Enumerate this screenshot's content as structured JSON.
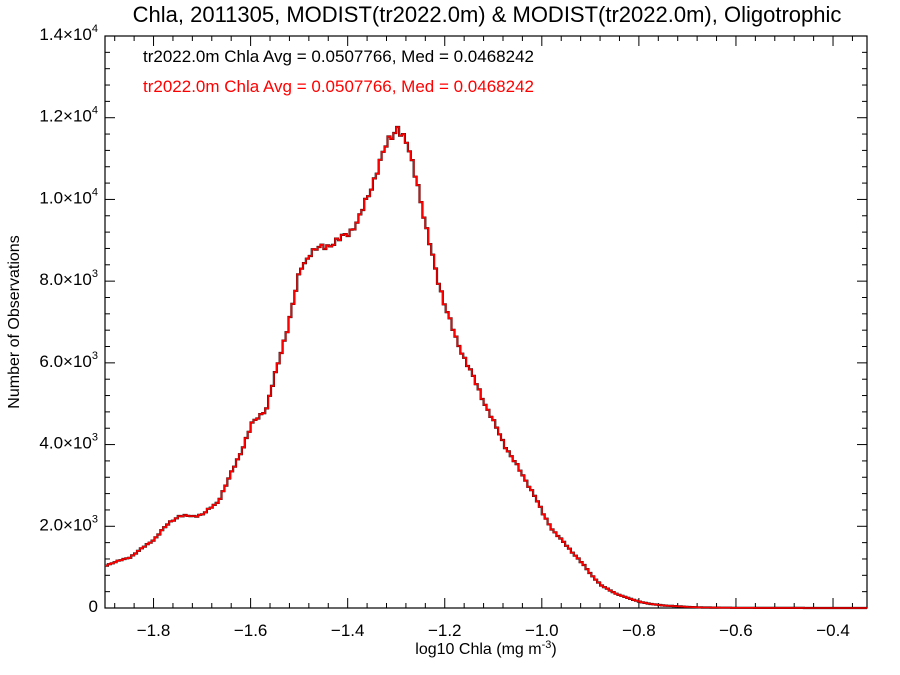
{
  "chart_data": {
    "type": "line",
    "title": "Chla, 2011305, MODIST(tr2022.0m) & MODIST(tr2022.0m), Oligotrophic",
    "xlabel": "log10 Chla (mg m",
    "xlabel_sup": "-3",
    "xlabel_end": ")",
    "ylabel": "Number of Observations",
    "xlim": [
      -1.9,
      -0.33
    ],
    "ylim": [
      0,
      14000
    ],
    "grid": false,
    "x_ticks": [
      -1.8,
      -1.6,
      -1.4,
      -1.2,
      -1.0,
      -0.8,
      -0.6,
      -0.4
    ],
    "x_tick_labels": [
      "−1.8",
      "−1.6",
      "−1.4",
      "−1.2",
      "−1.0",
      "−0.8",
      "−0.6",
      "−0.4"
    ],
    "y_ticks": [
      0,
      2000,
      4000,
      6000,
      8000,
      10000,
      12000,
      14000
    ],
    "y_tick_labels": [
      {
        "base": "0",
        "exp": ""
      },
      {
        "base": "2.0×10",
        "exp": "3"
      },
      {
        "base": "4.0×10",
        "exp": "3"
      },
      {
        "base": "6.0×10",
        "exp": "3"
      },
      {
        "base": "8.0×10",
        "exp": "3"
      },
      {
        "base": "1.0×10",
        "exp": "4"
      },
      {
        "base": "1.2×10",
        "exp": "4"
      },
      {
        "base": "1.4×10",
        "exp": "4"
      }
    ],
    "annotations": [
      {
        "text": "tr2022.0m Chla Avg = 0.0507766, Med = 0.0468242",
        "color": "#000000"
      },
      {
        "text": "tr2022.0m Chla Avg = 0.0507766, Med = 0.0468242",
        "color": "#ff0000"
      }
    ],
    "series": [
      {
        "color": "#000000",
        "x": [
          -1.9,
          -1.85,
          -1.8,
          -1.77,
          -1.75,
          -1.72,
          -1.7,
          -1.67,
          -1.65,
          -1.62,
          -1.6,
          -1.57,
          -1.55,
          -1.52,
          -1.5,
          -1.48,
          -1.46,
          -1.44,
          -1.42,
          -1.4,
          -1.38,
          -1.36,
          -1.34,
          -1.32,
          -1.3,
          -1.28,
          -1.26,
          -1.24,
          -1.22,
          -1.2,
          -1.18,
          -1.15,
          -1.12,
          -1.1,
          -1.08,
          -1.05,
          -1.02,
          -1.0,
          -0.98,
          -0.95,
          -0.92,
          -0.9,
          -0.88,
          -0.85,
          -0.82,
          -0.8,
          -0.78,
          -0.75,
          -0.72,
          -0.7,
          -0.68,
          -0.65,
          -0.6,
          -0.55,
          -0.5,
          -0.45,
          -0.4,
          -0.33
        ],
        "y": [
          1050,
          1250,
          1700,
          2100,
          2250,
          2250,
          2300,
          2600,
          3100,
          3900,
          4500,
          4900,
          5800,
          7200,
          8300,
          8700,
          8800,
          8900,
          9000,
          9200,
          9500,
          10100,
          10800,
          11400,
          11800,
          11300,
          10500,
          9200,
          8200,
          7300,
          6600,
          5800,
          5000,
          4500,
          4000,
          3400,
          2800,
          2300,
          1900,
          1500,
          1100,
          800,
          550,
          350,
          220,
          150,
          100,
          60,
          40,
          25,
          15,
          10,
          5,
          3,
          2,
          1,
          0,
          0
        ]
      },
      {
        "color": "#ff0000",
        "x": [
          -1.9,
          -1.85,
          -1.8,
          -1.77,
          -1.75,
          -1.72,
          -1.7,
          -1.67,
          -1.65,
          -1.62,
          -1.6,
          -1.57,
          -1.55,
          -1.52,
          -1.5,
          -1.48,
          -1.46,
          -1.44,
          -1.42,
          -1.4,
          -1.38,
          -1.36,
          -1.34,
          -1.32,
          -1.3,
          -1.28,
          -1.26,
          -1.24,
          -1.22,
          -1.2,
          -1.18,
          -1.15,
          -1.12,
          -1.1,
          -1.08,
          -1.05,
          -1.02,
          -1.0,
          -0.98,
          -0.95,
          -0.92,
          -0.9,
          -0.88,
          -0.85,
          -0.82,
          -0.8,
          -0.78,
          -0.75,
          -0.72,
          -0.7,
          -0.68,
          -0.65,
          -0.6,
          -0.55,
          -0.5,
          -0.45,
          -0.4,
          -0.33
        ],
        "y": [
          1050,
          1250,
          1700,
          2100,
          2250,
          2250,
          2300,
          2600,
          3100,
          3900,
          4500,
          4900,
          5800,
          7200,
          8300,
          8700,
          8800,
          8900,
          9000,
          9200,
          9500,
          10100,
          10800,
          11400,
          11800,
          11300,
          10500,
          9200,
          8200,
          7300,
          6600,
          5800,
          5000,
          4500,
          4000,
          3400,
          2800,
          2300,
          1900,
          1500,
          1100,
          800,
          550,
          350,
          220,
          150,
          100,
          60,
          40,
          25,
          15,
          10,
          5,
          3,
          2,
          1,
          0,
          0
        ]
      }
    ]
  }
}
